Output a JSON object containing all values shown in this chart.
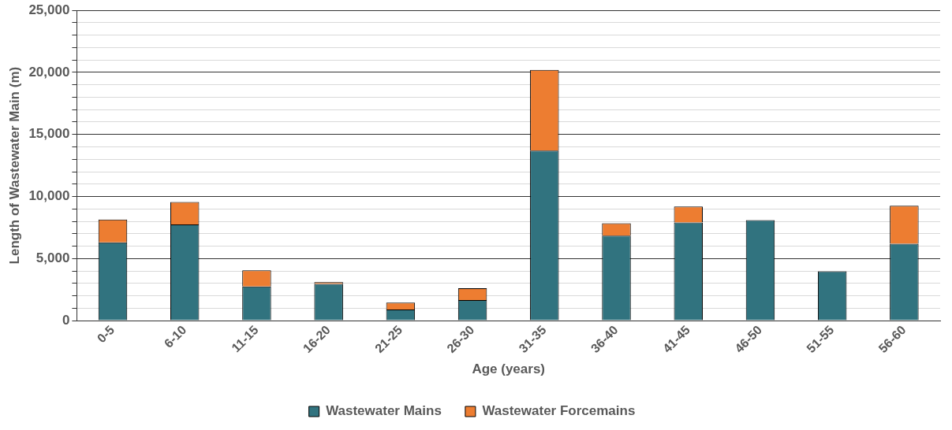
{
  "chart_data": {
    "type": "bar",
    "stacked": true,
    "xlabel": "Age (years)",
    "ylabel": "Length of Wastewater Main (m)",
    "categories": [
      "0-5",
      "6-10",
      "11-15",
      "16-20",
      "21-25",
      "26-30",
      "31-35",
      "36-40",
      "41-45",
      "46-50",
      "51-55",
      "56-60"
    ],
    "series": [
      {
        "name": "Wastewater Mains",
        "color": "#31737f",
        "values": [
          6300,
          7750,
          2750,
          2950,
          900,
          1650,
          13700,
          6850,
          7900,
          8100,
          3980,
          6200
        ]
      },
      {
        "name": "Wastewater Forcemains",
        "color": "#ed7d31",
        "values": [
          1850,
          1800,
          1300,
          150,
          550,
          950,
          6500,
          1000,
          1300,
          null,
          0,
          3050
        ]
      }
    ],
    "ylim": [
      0,
      25000
    ],
    "yticks": [
      0,
      {
        "value": 1000,
        "label": null
      },
      {
        "value": 2000,
        "label": null
      },
      {
        "value": 3000,
        "label": null
      },
      {
        "value": 4000,
        "label": null
      },
      {
        "value": 5000,
        "label": "5,000"
      },
      {
        "value": 6000,
        "label": null
      },
      {
        "value": 7000,
        "label": null
      },
      {
        "value": 8000,
        "label": null
      },
      {
        "value": 9000,
        "label": null
      },
      {
        "value": 10000,
        "label": "10,000"
      },
      {
        "value": 11000,
        "label": null
      },
      {
        "value": 12000,
        "label": null
      },
      {
        "value": 13000,
        "label": null
      },
      {
        "value": 14000,
        "label": null
      },
      {
        "value": 15000,
        "label": "15,000"
      },
      {
        "value": 16000,
        "label": null
      },
      {
        "value": 17000,
        "label": null
      },
      {
        "value": 18000,
        "label": null
      },
      {
        "value": 19000,
        "label": null
      },
      {
        "value": 20000,
        "label": "20,000"
      },
      {
        "value": 21000,
        "label": null
      },
      {
        "value": 22000,
        "label": null
      },
      {
        "value": 23000,
        "label": null
      },
      {
        "value": 24000,
        "label": null
      },
      {
        "value": 25000,
        "label": "25,000"
      }
    ],
    "grid": "y",
    "legend": "bottom"
  }
}
